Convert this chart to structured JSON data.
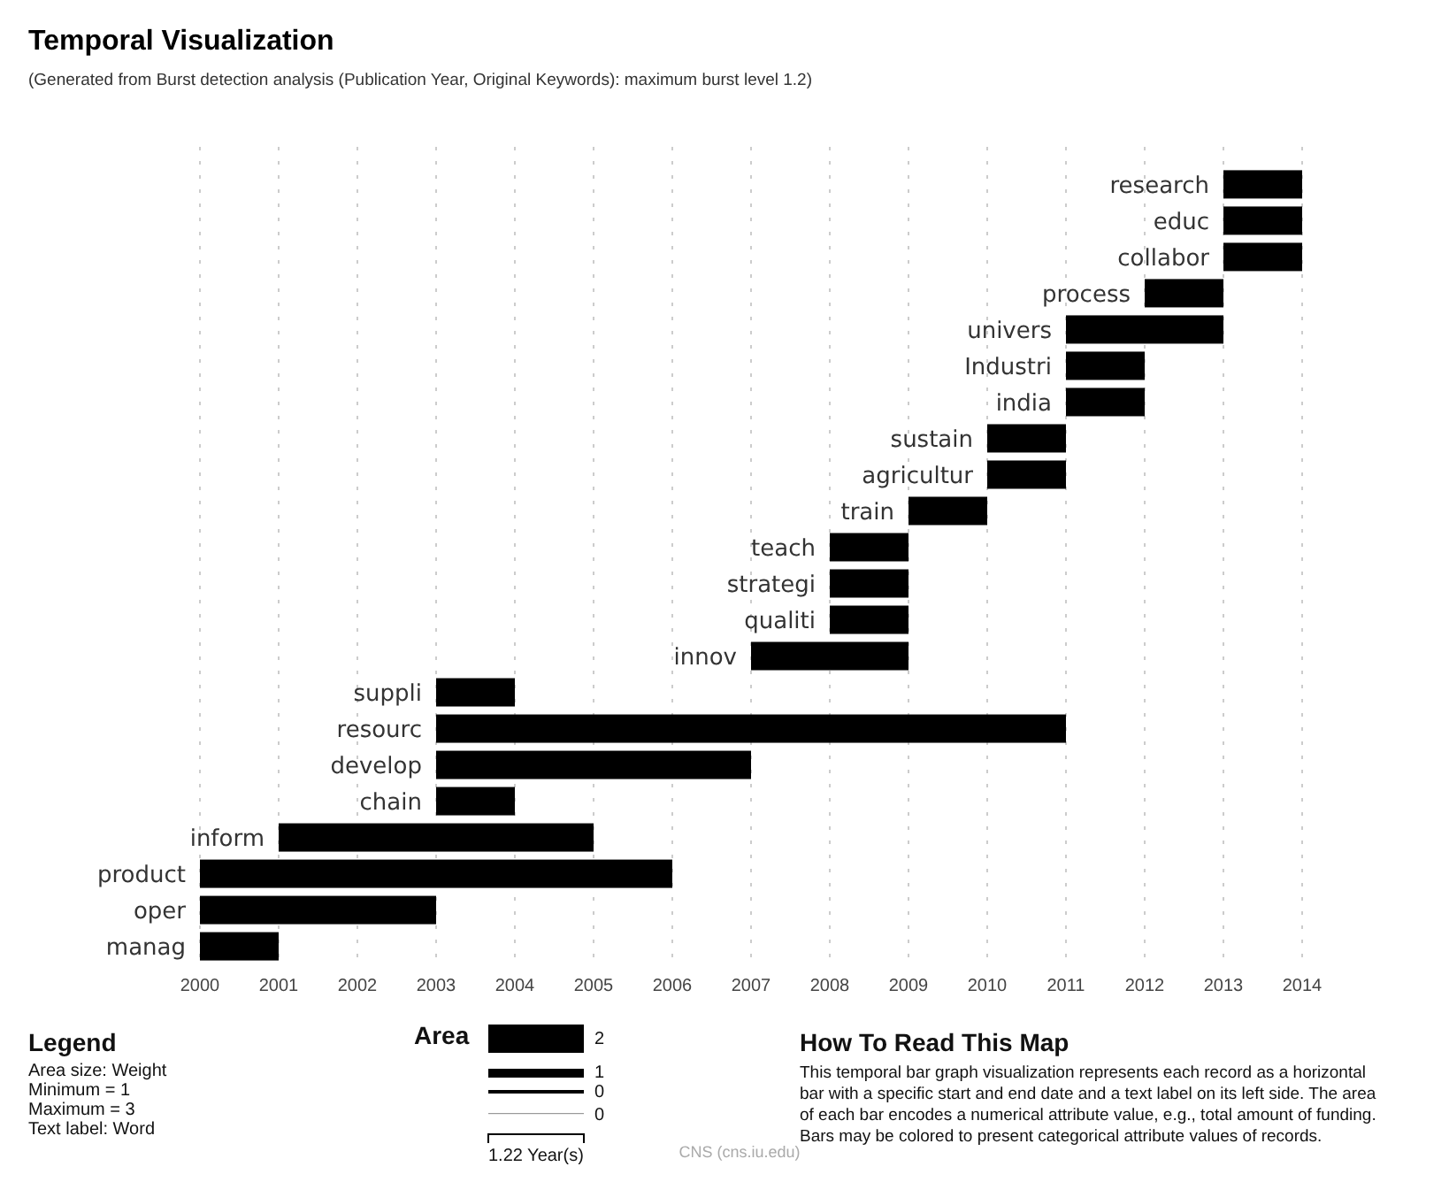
{
  "chart_data": {
    "type": "bar",
    "orientation": "horizontal",
    "title": "Temporal Visualization",
    "subtitle": "(Generated from Burst detection analysis (Publication Year, Original Keywords): maximum burst level 1.2)",
    "categories": [
      "research",
      "educ",
      "collabor",
      "process",
      "univers",
      "Industri",
      "india",
      "sustain",
      "agricultur",
      "train",
      "teach",
      "strategi",
      "qualiti",
      "innov",
      "suppli",
      "resourc",
      "develop",
      "chain",
      "inform",
      "product",
      "oper",
      "manag"
    ],
    "base": [
      2013,
      2013,
      2013,
      2012,
      2011,
      2011,
      2011,
      2010,
      2010,
      2009,
      2008,
      2008,
      2008,
      2007,
      2003,
      2003,
      2003,
      2003,
      2001,
      2000,
      2000,
      2000
    ],
    "values": [
      1,
      1,
      1,
      1,
      2,
      1,
      1,
      1,
      1,
      1,
      1,
      1,
      1,
      2,
      1,
      8,
      4,
      1,
      4,
      6,
      3,
      1
    ],
    "color": "#000000",
    "xlim": [
      2000,
      2014
    ],
    "xticks": [
      2000,
      2001,
      2002,
      2003,
      2004,
      2005,
      2006,
      2007,
      2008,
      2009,
      2010,
      2011,
      2012,
      2013,
      2014
    ],
    "grid": "x",
    "annotations": [
      "Legend",
      "Area size: Weight",
      "Minimum = 1",
      "Maximum = 3",
      "Text label: Word",
      "Area",
      "2",
      "1",
      "0",
      "0",
      "1.22 Year(s)",
      "How To Read This Map",
      "This temporal bar graph visualization represents each record as a horizontal",
      "bar with a specific start and end date and a text label on its left side. The area",
      "of each bar encodes a numerical attribute value, e.g., total amount of funding.",
      "Bars may be colored to present categorical attribute values of records.",
      "CNS (cns.iu.edu)"
    ]
  }
}
